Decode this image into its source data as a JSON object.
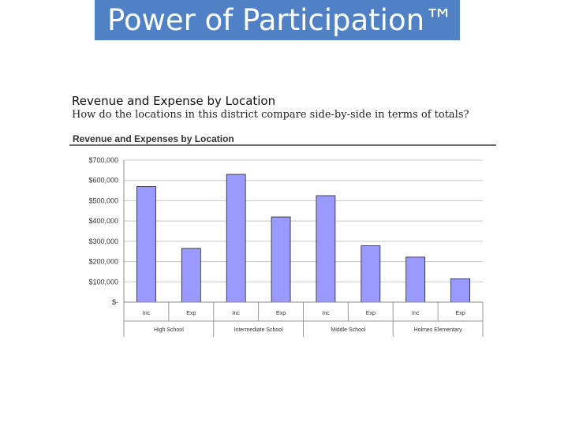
{
  "slide": {
    "banner_title": "Power of Participation™",
    "section_title": "Revenue and Expense by Location",
    "section_subtitle": "How do the locations in this district compare side-by-side in terms of totals?"
  },
  "colors": {
    "banner": "#4f81c4",
    "bar_fill": "#9999ff",
    "bar_stroke": "#222222",
    "grid": "#c8c8c8"
  },
  "chart_data": {
    "type": "bar",
    "title": "Revenue and Expenses by Location",
    "ylim": [
      0,
      700000
    ],
    "yticks": [
      {
        "value": 700000,
        "label": "$700,000"
      },
      {
        "value": 600000,
        "label": "$600,000"
      },
      {
        "value": 500000,
        "label": "$500,000"
      },
      {
        "value": 400000,
        "label": "$400,000"
      },
      {
        "value": 300000,
        "label": "$300,000"
      },
      {
        "value": 200000,
        "label": "$200,000"
      },
      {
        "value": 100000,
        "label": "$100,000"
      },
      {
        "value": 0,
        "label": "$-"
      }
    ],
    "grid": true,
    "legend": "none",
    "groups": [
      {
        "label": "High School",
        "bars": [
          {
            "label": "Inc",
            "value": 570000
          },
          {
            "label": "Exp",
            "value": 265000
          }
        ]
      },
      {
        "label": "Intermediate School",
        "bars": [
          {
            "label": "Inc",
            "value": 630000
          },
          {
            "label": "Exp",
            "value": 420000
          }
        ]
      },
      {
        "label": "Middle School",
        "bars": [
          {
            "label": "Inc",
            "value": 525000
          },
          {
            "label": "Exp",
            "value": 278000
          }
        ]
      },
      {
        "label": "Holmes Elementary",
        "bars": [
          {
            "label": "Inc",
            "value": 222000
          },
          {
            "label": "Exp",
            "value": 115000
          }
        ]
      }
    ]
  }
}
